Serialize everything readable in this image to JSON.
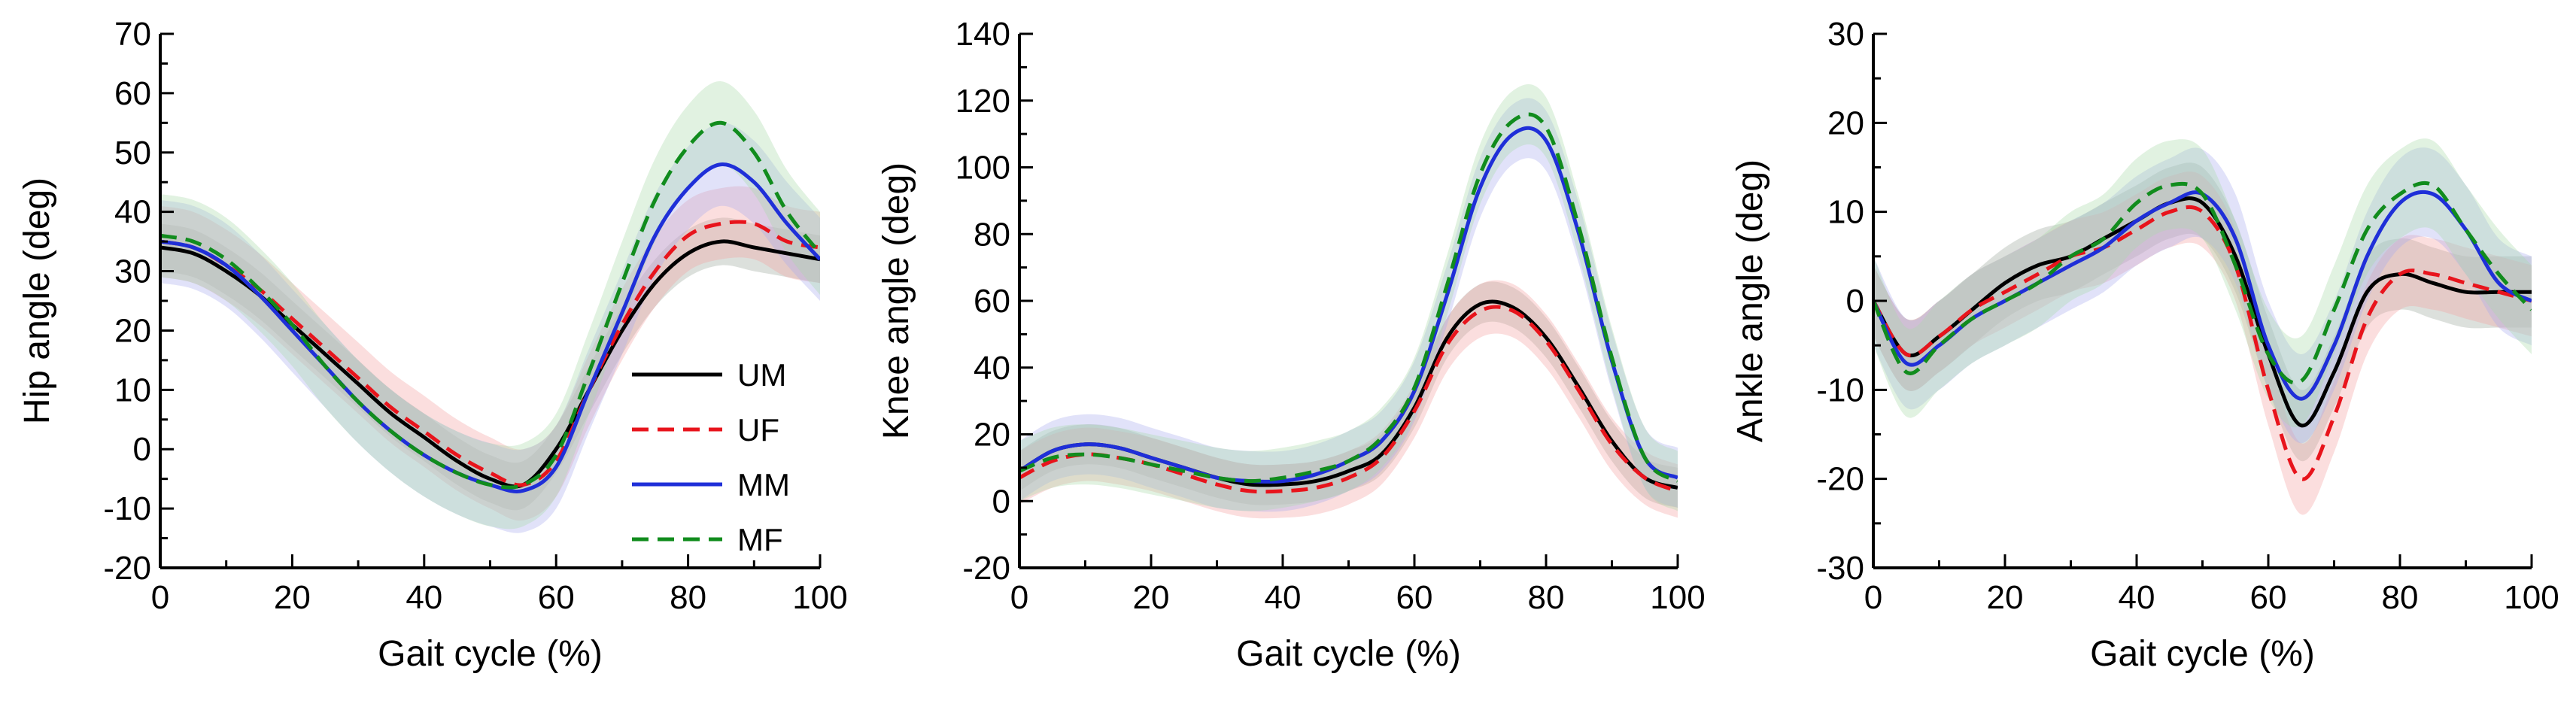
{
  "chart_data": [
    {
      "type": "line",
      "title": "",
      "xlabel": "Gait cycle (%)",
      "ylabel": "Hip angle (deg)",
      "xlim": [
        0,
        100
      ],
      "ylim": [
        -20,
        70
      ],
      "xticks": [
        0,
        20,
        40,
        60,
        80,
        100
      ],
      "yticks": [
        -20,
        -10,
        0,
        10,
        20,
        30,
        40,
        50,
        60,
        70
      ],
      "legend": {
        "location": "center-right"
      },
      "x": [
        0,
        5,
        10,
        15,
        20,
        25,
        30,
        35,
        40,
        45,
        50,
        55,
        60,
        65,
        70,
        75,
        80,
        85,
        90,
        95,
        100
      ],
      "series": [
        {
          "name": "UM",
          "values": [
            34,
            33,
            30,
            26,
            21,
            16,
            11,
            6,
            2,
            -2,
            -5,
            -6,
            0,
            10,
            20,
            28,
            33,
            35,
            34,
            33,
            32
          ],
          "band": 4
        },
        {
          "name": "UF",
          "values": [
            35,
            34,
            31,
            27,
            22,
            17,
            12,
            7,
            3,
            -1,
            -4,
            -6,
            -2,
            10,
            21,
            30,
            36,
            38,
            38,
            35,
            34
          ],
          "band": 6
        },
        {
          "name": "MM",
          "values": [
            35,
            34,
            31,
            26,
            20,
            14,
            8,
            3,
            -1,
            -4,
            -6,
            -7,
            -3,
            10,
            23,
            36,
            44,
            48,
            45,
            38,
            32
          ],
          "band": 7
        },
        {
          "name": "MF",
          "values": [
            36,
            35,
            32,
            27,
            21,
            14,
            8,
            3,
            -1,
            -4,
            -6,
            -6,
            -1,
            13,
            28,
            42,
            51,
            55,
            50,
            40,
            33
          ],
          "band": 7
        }
      ]
    },
    {
      "type": "line",
      "title": "",
      "xlabel": "Gait cycle (%)",
      "ylabel": "Knee angle (deg)",
      "xlim": [
        0,
        100
      ],
      "ylim": [
        -20,
        140
      ],
      "xticks": [
        0,
        20,
        40,
        60,
        80,
        100
      ],
      "yticks": [
        -20,
        0,
        20,
        40,
        60,
        80,
        100,
        120,
        140
      ],
      "x": [
        0,
        5,
        10,
        15,
        20,
        25,
        30,
        35,
        40,
        45,
        50,
        55,
        60,
        65,
        70,
        75,
        80,
        85,
        90,
        95,
        100
      ],
      "series": [
        {
          "name": "UM",
          "values": [
            9,
            15,
            17,
            16,
            13,
            10,
            7,
            5,
            5,
            6,
            9,
            14,
            28,
            49,
            59,
            58,
            49,
            34,
            18,
            7,
            4
          ],
          "band": 6
        },
        {
          "name": "UF",
          "values": [
            7,
            12,
            14,
            13,
            11,
            8,
            5,
            3,
            3,
            4,
            7,
            13,
            27,
            47,
            57,
            57,
            48,
            33,
            17,
            7,
            3
          ],
          "band": 8
        },
        {
          "name": "MM",
          "values": [
            9,
            15,
            17,
            16,
            13,
            10,
            7,
            6,
            6,
            8,
            12,
            18,
            33,
            62,
            94,
            110,
            108,
            80,
            42,
            13,
            7
          ],
          "band": 9
        },
        {
          "name": "MF",
          "values": [
            9,
            13,
            14,
            13,
            11,
            9,
            7,
            6,
            7,
            9,
            12,
            19,
            34,
            65,
            98,
            114,
            112,
            82,
            43,
            13,
            6
          ],
          "band": 9
        }
      ]
    },
    {
      "type": "line",
      "title": "",
      "xlabel": "Gait cycle (%)",
      "ylabel": "Ankle angle (deg)",
      "xlim": [
        0,
        100
      ],
      "ylim": [
        -30,
        30
      ],
      "xticks": [
        0,
        20,
        40,
        60,
        80,
        100
      ],
      "yticks": [
        -30,
        -20,
        -10,
        0,
        10,
        20,
        30
      ],
      "x": [
        0,
        5,
        10,
        15,
        20,
        25,
        30,
        35,
        40,
        45,
        50,
        55,
        60,
        65,
        70,
        75,
        80,
        85,
        90,
        95,
        100
      ],
      "series": [
        {
          "name": "UM",
          "values": [
            0,
            -6,
            -4,
            -1,
            2,
            4,
            5,
            7,
            9,
            11,
            11,
            5,
            -6,
            -14,
            -8,
            1,
            3,
            2,
            1,
            1,
            1
          ],
          "band": 4
        },
        {
          "name": "UF",
          "values": [
            0,
            -6,
            -4,
            -1,
            1,
            3,
            5,
            6,
            8,
            10,
            10,
            4,
            -10,
            -20,
            -13,
            -2,
            3,
            3,
            2,
            1,
            0
          ],
          "band": 4
        },
        {
          "name": "MM",
          "values": [
            0,
            -7,
            -5,
            -2,
            0,
            2,
            4,
            6,
            9,
            11,
            12,
            7,
            -5,
            -11,
            -5,
            5,
            11,
            12,
            8,
            2,
            0
          ],
          "band": 5
        },
        {
          "name": "MF",
          "values": [
            0,
            -8,
            -5,
            -2,
            0,
            2,
            5,
            7,
            11,
            13,
            12,
            4,
            -6,
            -9,
            -1,
            8,
            12,
            13,
            8,
            3,
            -1
          ],
          "band": 5
        }
      ]
    }
  ],
  "legend": {
    "entries": [
      {
        "name": "UM",
        "color": "#000000",
        "dash": "solid"
      },
      {
        "name": "UF",
        "color": "#e8141c",
        "dash": "dashed"
      },
      {
        "name": "MM",
        "color": "#1f2fd8",
        "dash": "solid"
      },
      {
        "name": "MF",
        "color": "#118c1d",
        "dash": "dashed"
      }
    ]
  },
  "colors": {
    "UM": "#000000",
    "UF": "#e8141c",
    "MM": "#1f2fd8",
    "MF": "#118c1d",
    "UM_band": "#9aa59a",
    "UF_band": "#f4a0a0",
    "MM_band": "#a9abef",
    "MF_band": "#a8dba8"
  }
}
